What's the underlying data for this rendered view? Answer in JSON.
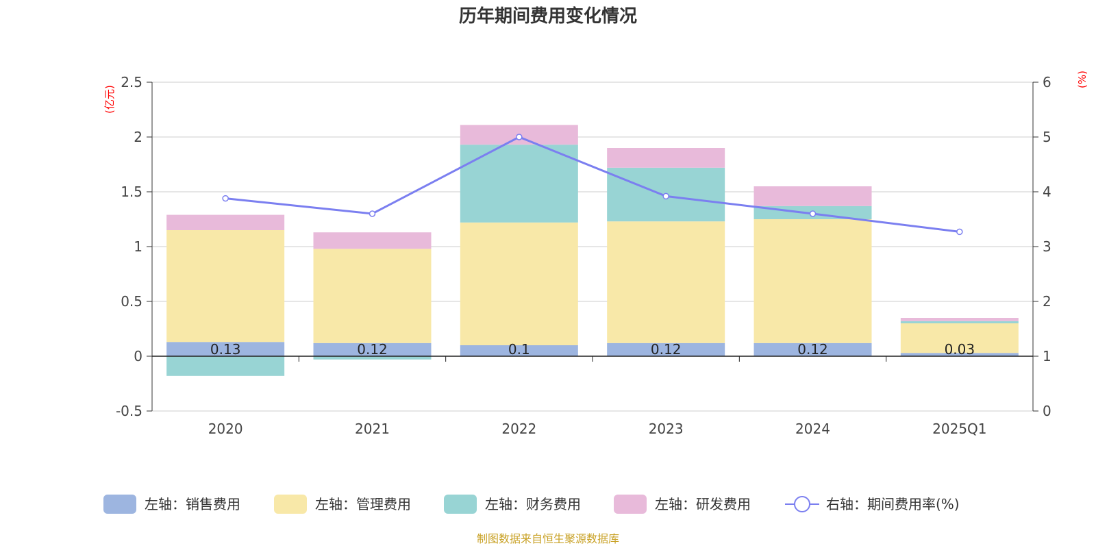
{
  "title": "历年期间费用变化情况",
  "source": "制图数据来自恒生聚源数据库",
  "chart_data": {
    "type": "bar",
    "stacked": true,
    "categories": [
      "2020",
      "2021",
      "2022",
      "2023",
      "2024",
      "2025Q1"
    ],
    "left_axis": {
      "unit": "(亿元)",
      "ylim": [
        -0.5,
        2.5
      ],
      "ticks": [
        -0.5,
        0,
        0.5,
        1,
        1.5,
        2,
        2.5
      ],
      "tick_labels": [
        "-0.5",
        "0",
        "0.5",
        "1",
        "1.5",
        "2",
        "2.5"
      ]
    },
    "right_axis": {
      "unit": "(%)",
      "ylim": [
        0,
        6
      ],
      "ticks": [
        0,
        1,
        2,
        3,
        4,
        5,
        6
      ],
      "tick_labels": [
        "0",
        "1",
        "2",
        "3",
        "4",
        "5",
        "6"
      ]
    },
    "series": [
      {
        "name": "左轴：销售费用",
        "type": "bar",
        "axis": "left",
        "color": "#9db5e0",
        "values": [
          0.13,
          0.12,
          0.1,
          0.12,
          0.12,
          0.03
        ],
        "data_labels": [
          "0.13",
          "0.12",
          "0.1",
          "0.12",
          "0.12",
          "0.03"
        ]
      },
      {
        "name": "左轴：管理费用",
        "type": "bar",
        "axis": "left",
        "color": "#f8e8a8",
        "values": [
          1.02,
          0.86,
          1.12,
          1.11,
          1.13,
          0.27
        ]
      },
      {
        "name": "左轴：财务费用",
        "type": "bar",
        "axis": "left",
        "color": "#98d4d4",
        "values": [
          -0.18,
          -0.03,
          0.71,
          0.49,
          0.12,
          0.02
        ]
      },
      {
        "name": "左轴：研发费用",
        "type": "bar",
        "axis": "left",
        "color": "#e8bada",
        "values": [
          0.14,
          0.15,
          0.18,
          0.18,
          0.18,
          0.03
        ]
      },
      {
        "name": "右轴：期间费用率(%)",
        "type": "line",
        "axis": "right",
        "color": "#7b7ff0",
        "values": [
          3.88,
          3.6,
          5.0,
          3.92,
          3.6,
          3.27
        ]
      }
    ],
    "grid": true,
    "legend_position": "bottom"
  }
}
